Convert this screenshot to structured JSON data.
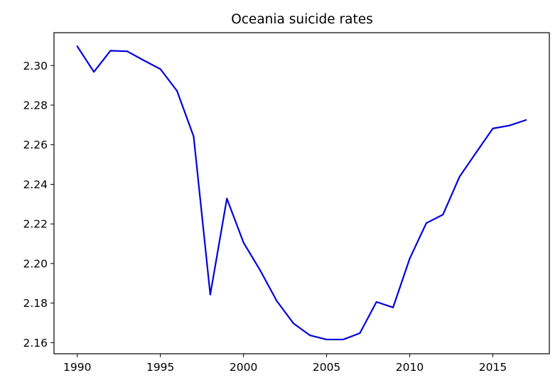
{
  "chart_data": {
    "type": "line",
    "title": "Oceania suicide rates",
    "xlabel": "",
    "ylabel": "",
    "xlim": [
      1988.6,
      2018.4
    ],
    "ylim": [
      2.1544,
      2.3166
    ],
    "grid": false,
    "x_ticks": [
      1990,
      1995,
      2000,
      2005,
      2010,
      2015
    ],
    "y_ticks": [
      2.16,
      2.18,
      2.2,
      2.22,
      2.24,
      2.26,
      2.28,
      2.3
    ],
    "series": [
      {
        "color": "#0000dd",
        "x": [
          1990,
          1991,
          1992,
          1993,
          1994,
          1995,
          1996,
          1997,
          1998,
          1999,
          2000,
          2001,
          2002,
          2003,
          2004,
          2005,
          2006,
          2007,
          2008,
          2009,
          2010,
          2011,
          2012,
          2013,
          2014,
          2015,
          2016,
          2017
        ],
        "y": [
          2.3097,
          2.2968,
          2.3075,
          2.3072,
          2.3026,
          2.2982,
          2.2872,
          2.2642,
          2.1843,
          2.2328,
          2.2106,
          2.1966,
          2.1811,
          2.1698,
          2.1637,
          2.1616,
          2.1616,
          2.1648,
          2.1806,
          2.1778,
          2.2025,
          2.2204,
          2.2247,
          2.2439,
          2.2561,
          2.2682,
          2.2697,
          2.2725
        ]
      }
    ]
  }
}
